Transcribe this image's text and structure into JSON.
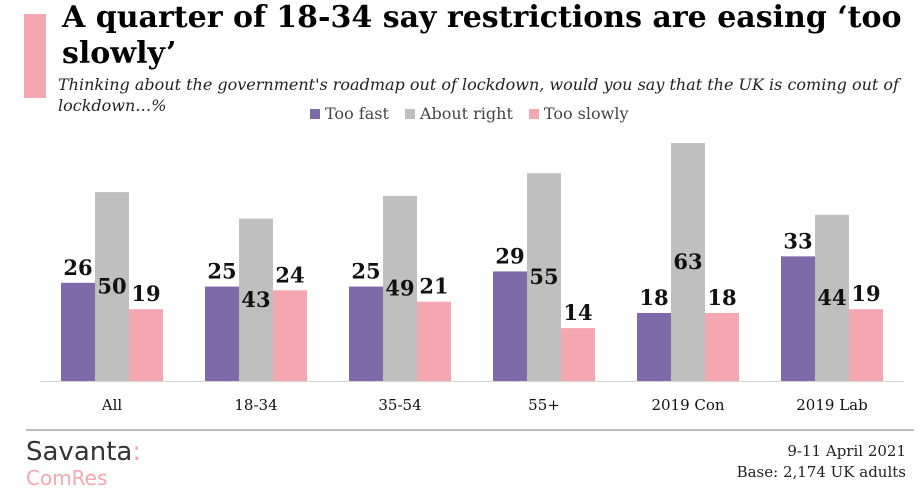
{
  "header": {
    "title": "A quarter of 18-34 say restrictions are easing ‘too slowly’",
    "subtitle": "Thinking about the government's roadmap out of lockdown, would you say that the UK is coming out of lockdown…%"
  },
  "colors": {
    "accent": "#f4a7b0",
    "too_fast": "#7e6aa9",
    "about_right": "#bfbfbf",
    "too_slowly": "#f4a7b0"
  },
  "chart_data": {
    "type": "bar",
    "categories": [
      "All",
      "18-34",
      "35-54",
      "55+",
      "2019 Con",
      "2019 Lab"
    ],
    "series": [
      {
        "name": "Too fast",
        "color": "#7e6aa9",
        "values": [
          26,
          25,
          25,
          29,
          18,
          33
        ]
      },
      {
        "name": "About right",
        "color": "#bfbfbf",
        "values": [
          50,
          43,
          49,
          55,
          63,
          44
        ]
      },
      {
        "name": "Too slowly",
        "color": "#f4a7b0",
        "values": [
          19,
          24,
          21,
          14,
          18,
          19
        ]
      }
    ],
    "ylim": [
      0,
      63
    ],
    "grid": false,
    "legend": "top-center",
    "data_labels": true
  },
  "footer": {
    "logo_name": "Savanta",
    "logo_colon": ":",
    "logo_sub": "ComRes",
    "date": "9-11 April 2021",
    "base": "Base: 2,174 UK adults"
  }
}
